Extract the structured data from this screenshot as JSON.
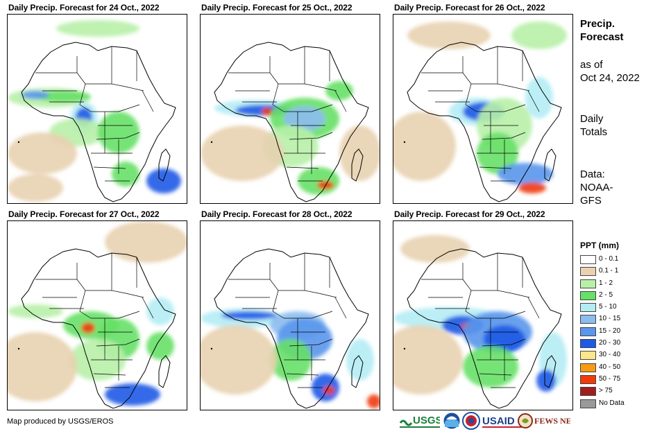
{
  "panels": [
    {
      "title": "Daily Precip. Forecast for 24 Oct., 2022"
    },
    {
      "title": "Daily Precip. Forecast for 25 Oct., 2022"
    },
    {
      "title": "Daily Precip. Forecast for 26 Oct., 2022"
    },
    {
      "title": "Daily Precip. Forecast for 27 Oct., 2022"
    },
    {
      "title": "Daily Precip. Forecast for 28 Oct., 2022"
    },
    {
      "title": "Daily Precip. Forecast for 29 Oct., 2022"
    }
  ],
  "sidebar": {
    "title_line1": "Precip.",
    "title_line2": "Forecast",
    "asof_line1": "as of",
    "asof_line2": "Oct 24, 2022",
    "totals_line1": "Daily",
    "totals_line2": "Totals",
    "source_line1": "Data:",
    "source_line2": "NOAA-",
    "source_line3": "GFS"
  },
  "legend": {
    "title": "PPT (mm)",
    "items": [
      {
        "label": "0 - 0.1",
        "color": "#ffffff"
      },
      {
        "label": "0.1 - 1",
        "color": "#e8d2b0"
      },
      {
        "label": "1 - 2",
        "color": "#b8f0a8"
      },
      {
        "label": "2 - 5",
        "color": "#66e066"
      },
      {
        "label": "5 - 10",
        "color": "#b4ecf4"
      },
      {
        "label": "10 - 15",
        "color": "#8cbcf0"
      },
      {
        "label": "15 - 20",
        "color": "#5a96ec"
      },
      {
        "label": "20 - 30",
        "color": "#1e5ae6"
      },
      {
        "label": "30 - 40",
        "color": "#fae68c"
      },
      {
        "label": "40 - 50",
        "color": "#f59c14"
      },
      {
        "label": "50 - 75",
        "color": "#f03c0a"
      },
      {
        "label": "> 75",
        "color": "#a01e1e"
      },
      {
        "label": "No Data",
        "color": "#999999"
      }
    ]
  },
  "footer": {
    "credit": "Map produced by USGS/EROS",
    "logo_usgs": "USGS",
    "logo_usaid": "USAID",
    "logo_fews": "FEWS NET"
  }
}
